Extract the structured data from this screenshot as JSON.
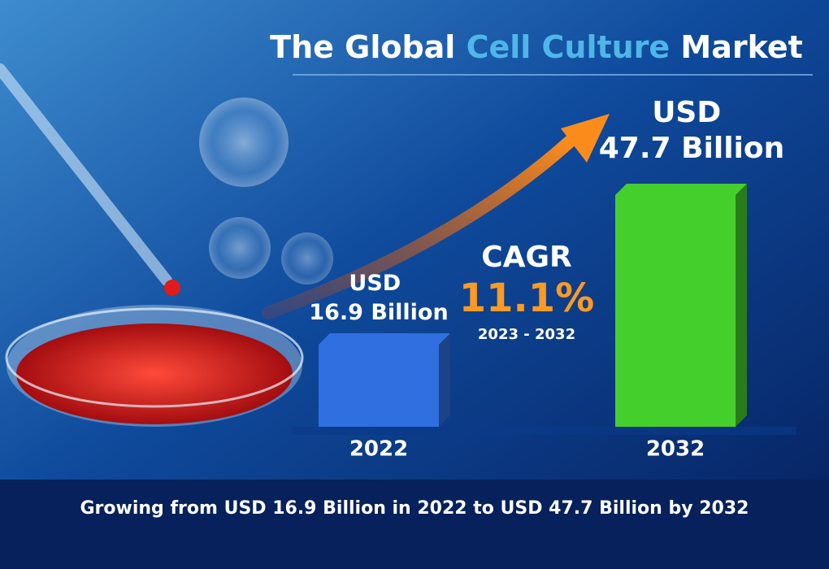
{
  "chart_data": {
    "type": "bar",
    "title": "The Global Cell Culture Market",
    "title_highlight": "Cell Culture",
    "categories": [
      "2022",
      "2032"
    ],
    "values": [
      16.9,
      47.7
    ],
    "value_labels": [
      "USD 16.9 Billion",
      "USD 47.7 Billion"
    ],
    "colors": [
      "#2f6fe0",
      "#45cf2c"
    ],
    "annotation": {
      "label": "CAGR",
      "value": "11.1%",
      "period": "2023 - 2032"
    },
    "footer": "Growing from USD 16.9 Billion in 2022 to USD 47.7 Billion by 2032"
  }
}
